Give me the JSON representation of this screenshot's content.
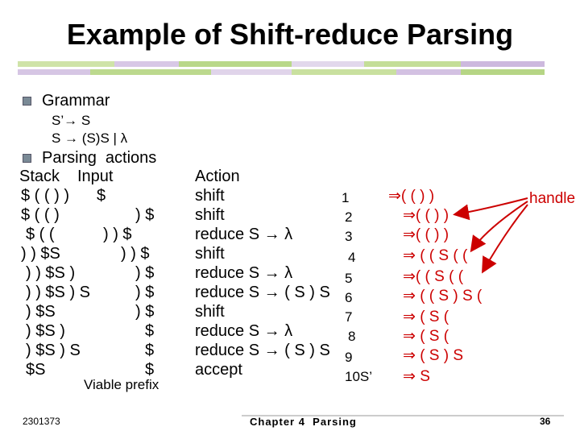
{
  "title": "Example of Shift-reduce Parsing",
  "bullets": {
    "grammar_label": "Grammar",
    "productions": [
      "S’→ S",
      "S → (S)S | λ"
    ],
    "actions_label": "Parsing  actions"
  },
  "headers": {
    "stack": "Stack",
    "input": "Input",
    "action": "Action"
  },
  "rows": [
    {
      "stack": "$ ( ( ) )",
      "input": "$",
      "action": "shift",
      "num": "1",
      "deriv": "⇒( ( ) )"
    },
    {
      "stack": "$ ( ( )",
      "input": ") $",
      "action": "shift",
      "num": "2",
      "deriv": "⇒( ( ) )"
    },
    {
      "stack": "$ ( (",
      "input": ") ) $",
      "action": "reduce S → λ",
      "num": "3",
      "deriv": "⇒( ( ) )"
    },
    {
      "stack": ") ) $S",
      "input": ") ) $",
      "action": "shift",
      "num": "4",
      "deriv": "⇒ ( ( S ( ("
    },
    {
      "stack": ") ) $S )",
      "input": ") $",
      "action": "reduce S → λ",
      "num": "5",
      "deriv": "⇒( ( S ( ("
    },
    {
      "stack": ") ) $S ) S",
      "input": ") $",
      "action": "reduce S → ( S ) S",
      "num": "6",
      "deriv": "⇒ ( ( S ) S ("
    },
    {
      "stack": ") $S",
      "input": ") $",
      "action": "shift",
      "num": "7",
      "deriv": "⇒ ( S ("
    },
    {
      "stack": ") $S )",
      "input": "$",
      "action": "reduce S → λ",
      "num": "8",
      "deriv": "⇒ ( S ("
    },
    {
      "stack": ") $S ) S",
      "input": "$",
      "action": "reduce S → ( S ) S",
      "num": "9",
      "deriv": "⇒ ( S ) S"
    },
    {
      "stack": "$S",
      "input": "$",
      "action": "accept",
      "num": "10S’",
      "deriv": "⇒ S"
    }
  ],
  "viable_prefix": "Viable prefix",
  "handle_label": "handle",
  "footer": {
    "left": "2301373",
    "center": "Chapter 4  Parsing",
    "page": "36"
  },
  "colors": {
    "handle": "#cc0000",
    "band_green": "#b9d889",
    "band_lavender": "#cdb9de"
  }
}
